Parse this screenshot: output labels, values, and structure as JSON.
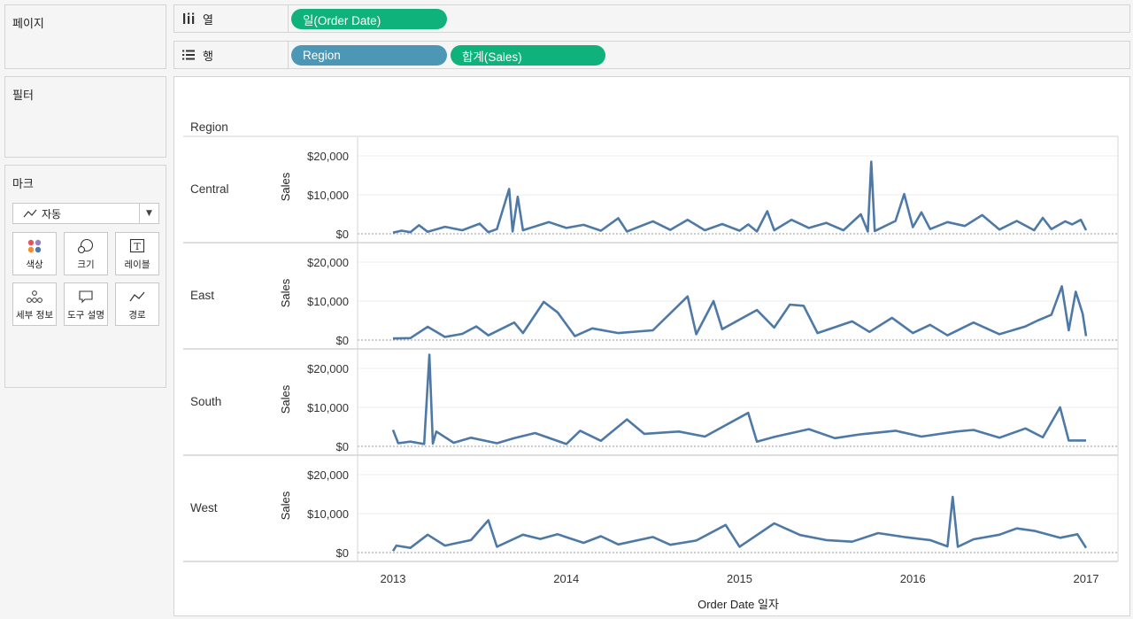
{
  "panels": {
    "pages_title": "페이지",
    "filters_title": "필터",
    "marks_title": "마크"
  },
  "marks": {
    "type_label": "자동",
    "buttons": [
      "색상",
      "크기",
      "레이블",
      "세부 정보",
      "도구 설명",
      "경로"
    ]
  },
  "shelves": {
    "columns_label": "열",
    "rows_label": "행",
    "columns_pills": [
      "일(Order Date)"
    ],
    "rows_pills": [
      "Region",
      "합계(Sales)"
    ]
  },
  "colors": {
    "line": "#4e79a7",
    "pill_green": "#0fb27a",
    "pill_blue": "#4b97b5"
  },
  "chart_data": {
    "type": "line",
    "row_header_title": "Region",
    "xlabel": "Order Date 일자",
    "ylabel": "Sales",
    "x_ticks": [
      "2013",
      "2014",
      "2015",
      "2016",
      "2017"
    ],
    "xlim": [
      "2013-01-01",
      "2017-01-01"
    ],
    "y_ticks": [
      "$0",
      "$10,000",
      "$20,000"
    ],
    "ylim": [
      0,
      23000
    ],
    "grid": true,
    "series": [
      {
        "name": "Central",
        "values": [
          [
            2013.0,
            300
          ],
          [
            2013.05,
            800
          ],
          [
            2013.1,
            400
          ],
          [
            2013.15,
            2200
          ],
          [
            2013.2,
            500
          ],
          [
            2013.3,
            1800
          ],
          [
            2013.4,
            900
          ],
          [
            2013.5,
            2600
          ],
          [
            2013.55,
            400
          ],
          [
            2013.6,
            1200
          ],
          [
            2013.67,
            11500
          ],
          [
            2013.69,
            600
          ],
          [
            2013.72,
            9500
          ],
          [
            2013.75,
            900
          ],
          [
            2013.9,
            3000
          ],
          [
            2014.0,
            1500
          ],
          [
            2014.1,
            2300
          ],
          [
            2014.2,
            800
          ],
          [
            2014.3,
            4000
          ],
          [
            2014.35,
            600
          ],
          [
            2014.5,
            3200
          ],
          [
            2014.6,
            1000
          ],
          [
            2014.7,
            3600
          ],
          [
            2014.8,
            900
          ],
          [
            2014.9,
            2500
          ],
          [
            2015.0,
            800
          ],
          [
            2015.05,
            2400
          ],
          [
            2015.1,
            600
          ],
          [
            2015.16,
            5800
          ],
          [
            2015.2,
            900
          ],
          [
            2015.3,
            3600
          ],
          [
            2015.4,
            1500
          ],
          [
            2015.5,
            2800
          ],
          [
            2015.6,
            900
          ],
          [
            2015.7,
            5000
          ],
          [
            2015.74,
            600
          ],
          [
            2015.76,
            18500
          ],
          [
            2015.78,
            700
          ],
          [
            2015.9,
            3300
          ],
          [
            2015.95,
            10200
          ],
          [
            2016.0,
            1700
          ],
          [
            2016.05,
            5500
          ],
          [
            2016.1,
            1200
          ],
          [
            2016.2,
            3000
          ],
          [
            2016.3,
            2000
          ],
          [
            2016.4,
            4800
          ],
          [
            2016.5,
            1100
          ],
          [
            2016.6,
            3300
          ],
          [
            2016.7,
            900
          ],
          [
            2016.75,
            4100
          ],
          [
            2016.8,
            1200
          ],
          [
            2016.88,
            3200
          ],
          [
            2016.92,
            2400
          ],
          [
            2016.97,
            3600
          ],
          [
            2017.0,
            900
          ]
        ]
      },
      {
        "name": "East",
        "values": [
          [
            2013.0,
            400
          ],
          [
            2013.1,
            500
          ],
          [
            2013.2,
            3400
          ],
          [
            2013.3,
            800
          ],
          [
            2013.4,
            1600
          ],
          [
            2013.48,
            3500
          ],
          [
            2013.55,
            1200
          ],
          [
            2013.7,
            4500
          ],
          [
            2013.75,
            1800
          ],
          [
            2013.87,
            9800
          ],
          [
            2013.95,
            7100
          ],
          [
            2014.05,
            1000
          ],
          [
            2014.15,
            3000
          ],
          [
            2014.3,
            1800
          ],
          [
            2014.5,
            2500
          ],
          [
            2014.7,
            11200
          ],
          [
            2014.75,
            1500
          ],
          [
            2014.85,
            10000
          ],
          [
            2014.9,
            2800
          ],
          [
            2015.1,
            7700
          ],
          [
            2015.2,
            3200
          ],
          [
            2015.29,
            9100
          ],
          [
            2015.37,
            8800
          ],
          [
            2015.45,
            1800
          ],
          [
            2015.65,
            4800
          ],
          [
            2015.75,
            2100
          ],
          [
            2015.88,
            5700
          ],
          [
            2016.0,
            1800
          ],
          [
            2016.1,
            3900
          ],
          [
            2016.2,
            1200
          ],
          [
            2016.35,
            4500
          ],
          [
            2016.5,
            1500
          ],
          [
            2016.65,
            3500
          ],
          [
            2016.72,
            5000
          ],
          [
            2016.8,
            6500
          ],
          [
            2016.86,
            13800
          ],
          [
            2016.9,
            2500
          ],
          [
            2016.94,
            12400
          ],
          [
            2016.98,
            6800
          ],
          [
            2017.0,
            1000
          ]
        ]
      },
      {
        "name": "South",
        "values": [
          [
            2013.0,
            4200
          ],
          [
            2013.03,
            800
          ],
          [
            2013.1,
            1200
          ],
          [
            2013.18,
            600
          ],
          [
            2013.21,
            23500
          ],
          [
            2013.23,
            700
          ],
          [
            2013.25,
            3800
          ],
          [
            2013.35,
            900
          ],
          [
            2013.45,
            2200
          ],
          [
            2013.6,
            800
          ],
          [
            2013.7,
            2100
          ],
          [
            2013.82,
            3400
          ],
          [
            2014.0,
            600
          ],
          [
            2014.08,
            4000
          ],
          [
            2014.2,
            1400
          ],
          [
            2014.35,
            6900
          ],
          [
            2014.45,
            3200
          ],
          [
            2014.65,
            3800
          ],
          [
            2014.8,
            2500
          ],
          [
            2015.05,
            8600
          ],
          [
            2015.1,
            1200
          ],
          [
            2015.2,
            2400
          ],
          [
            2015.4,
            4400
          ],
          [
            2015.55,
            2100
          ],
          [
            2015.7,
            3100
          ],
          [
            2015.9,
            4000
          ],
          [
            2016.05,
            2500
          ],
          [
            2016.25,
            3800
          ],
          [
            2016.35,
            4200
          ],
          [
            2016.5,
            2200
          ],
          [
            2016.65,
            4600
          ],
          [
            2016.75,
            2300
          ],
          [
            2016.85,
            10000
          ],
          [
            2016.9,
            1500
          ],
          [
            2017.0,
            1500
          ]
        ]
      },
      {
        "name": "West",
        "values": [
          [
            2013.0,
            400
          ],
          [
            2013.02,
            1800
          ],
          [
            2013.1,
            1200
          ],
          [
            2013.2,
            4600
          ],
          [
            2013.3,
            1800
          ],
          [
            2013.45,
            3200
          ],
          [
            2013.55,
            8300
          ],
          [
            2013.6,
            1500
          ],
          [
            2013.75,
            4600
          ],
          [
            2013.85,
            3500
          ],
          [
            2013.95,
            4700
          ],
          [
            2014.1,
            2500
          ],
          [
            2014.2,
            4200
          ],
          [
            2014.3,
            2100
          ],
          [
            2014.5,
            4000
          ],
          [
            2014.6,
            2000
          ],
          [
            2014.75,
            3100
          ],
          [
            2014.92,
            7100
          ],
          [
            2015.0,
            1500
          ],
          [
            2015.2,
            7500
          ],
          [
            2015.35,
            4500
          ],
          [
            2015.5,
            3200
          ],
          [
            2015.65,
            2800
          ],
          [
            2015.8,
            5000
          ],
          [
            2015.95,
            4000
          ],
          [
            2016.1,
            3200
          ],
          [
            2016.2,
            1600
          ],
          [
            2016.23,
            14300
          ],
          [
            2016.26,
            1500
          ],
          [
            2016.35,
            3400
          ],
          [
            2016.5,
            4600
          ],
          [
            2016.6,
            6200
          ],
          [
            2016.7,
            5600
          ],
          [
            2016.85,
            3800
          ],
          [
            2016.95,
            4700
          ],
          [
            2017.0,
            1200
          ]
        ]
      }
    ]
  }
}
